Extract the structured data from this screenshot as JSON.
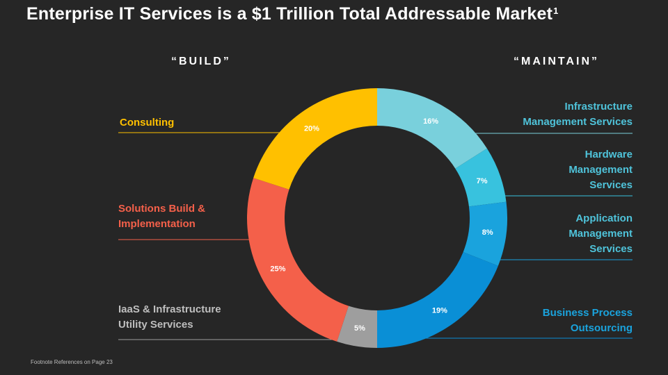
{
  "title": {
    "text": "Enterprise IT Services is a $1 Trillion Total Addressable Market",
    "superscript": "1"
  },
  "groups": {
    "build": "“BUILD”",
    "maintain": "“MAINTAIN”"
  },
  "footnote": "Footnote References on Page 23",
  "chart_data": {
    "type": "pie",
    "donut": true,
    "categories": [
      "Infrastructure Management Services",
      "Hardware Management Services",
      "Application Management Services",
      "Business Process Outsourcing",
      "IaaS & Infrastructure Utility Services",
      "Solutions Build & Implementation",
      "Consulting"
    ],
    "values": [
      16,
      7,
      8,
      19,
      5,
      25,
      20
    ],
    "value_labels": [
      "16%",
      "7%",
      "8%",
      "19%",
      "5%",
      "25%",
      "20%"
    ],
    "colors": [
      "#79d0dc",
      "#38c2de",
      "#1aa3dd",
      "#0a8fd6",
      "#9e9e9e",
      "#f4604a",
      "#ffc000"
    ],
    "label_lines": [
      [
        "Infrastructure",
        "Management Services"
      ],
      [
        "Hardware",
        "Management",
        "Services"
      ],
      [
        "Application",
        "Management",
        "Services"
      ],
      [
        "Business Process",
        "Outsourcing"
      ],
      [
        "IaaS & Infrastructure",
        "Utility Services"
      ],
      [
        "Solutions Build &",
        "Implementation"
      ],
      [
        "Consulting"
      ]
    ],
    "label_colors": [
      "#4fc3da",
      "#4fc3da",
      "#4fc3da",
      "#1aa3dd",
      "#bfbfbf",
      "#f4604a",
      "#ffc000"
    ],
    "start_angle_deg": 0,
    "direction": "clockwise"
  }
}
